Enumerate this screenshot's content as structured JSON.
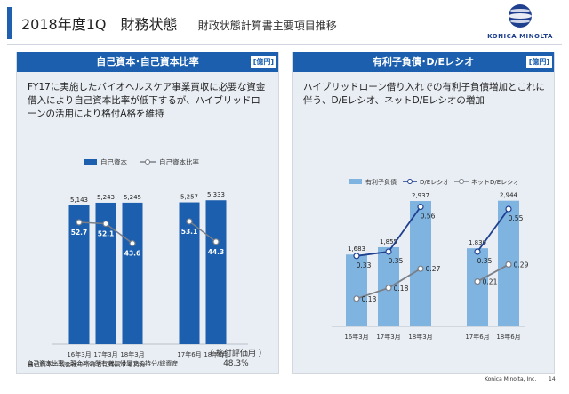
{
  "header": {
    "title": "2018年度1Q　財務状態",
    "subtitle": "財政状態計算書主要項目推移"
  },
  "logo": {
    "text": "KONICA MINOLTA"
  },
  "left_panel": {
    "title": "自己資本･自己資本比率",
    "unit": "[億円]",
    "description": "FY17に実施したバイオヘルスケア事業買収に必要な資金借入により自己資本比率が低下するが、ハイブリッドローンの活用により格付A格を維持",
    "legend_bar": "自己資本",
    "legend_line": "自己資本比率",
    "rating": "（ 格付評価用 ）",
    "rating_value": "48.3%",
    "note1": "自己資本＝親会社の所有者に帰属する持分",
    "note2": "自己資本比率＝親会社の所有者に帰属する持分/総資産"
  },
  "right_panel": {
    "title": "有利子負債･D/Eレシオ",
    "unit": "[億円]",
    "description": "ハイブリッドローン借り入れでの有利子負債増加とこれに伴う、D/Eレシオ、ネットD/Eレシオの増加",
    "legend_bar": "有利子負債",
    "legend_line1": "D/Eレシオ",
    "legend_line2": "ネットD/Eレシオ"
  },
  "footer": {
    "company": "Konica Minolta, Inc.",
    "page": "14"
  },
  "colors": {
    "accent": "#1b5fae",
    "bar_dark": "#1b5fae",
    "bar_light": "#7fb3e0",
    "line": "#7a7f88",
    "line_dark": "#1f3f8f"
  },
  "chart_data": [
    {
      "type": "bar",
      "categories": [
        "16年3月",
        "17年3月",
        "18年3月",
        "17年6月",
        "18年6月"
      ],
      "series": [
        {
          "name": "自己資本",
          "values": [
            5143,
            5243,
            5245,
            5257,
            5333
          ]
        },
        {
          "name": "自己資本比率",
          "values": [
            52.7,
            52.1,
            43.6,
            53.1,
            44.3
          ]
        }
      ],
      "value_labels": [
        "5,143",
        "5,243",
        "5,245",
        "5,257",
        "5,333"
      ],
      "ratio_labels": [
        "52.7",
        "52.1",
        "43.6",
        "53.1",
        "44.3"
      ],
      "line_segments": [
        [
          0,
          1,
          2
        ],
        [
          3,
          4
        ]
      ],
      "ylim": [
        0,
        6000
      ],
      "y2lim": [
        0,
        70
      ]
    },
    {
      "type": "bar",
      "categories": [
        "16年3月",
        "17年3月",
        "18年3月",
        "17年6月",
        "18年6月"
      ],
      "series": [
        {
          "name": "有利子負債",
          "values": [
            1683,
            1855,
            2937,
            1830,
            2944
          ]
        },
        {
          "name": "D/Eレシオ",
          "values": [
            0.33,
            0.35,
            0.56,
            0.35,
            0.55
          ]
        },
        {
          "name": "ネットD/Eレシオ",
          "values": [
            0.13,
            0.18,
            0.27,
            0.21,
            0.29
          ]
        }
      ],
      "value_labels": [
        "1,683",
        "1,855",
        "2,937",
        "1,830",
        "2,944"
      ],
      "de_labels": [
        "0.33",
        "0.35",
        "0.56",
        "0.35",
        "0.55"
      ],
      "net_labels": [
        "0.13",
        "0.18",
        "0.27",
        "0.21",
        "0.29"
      ],
      "line_segments": [
        [
          0,
          1,
          2
        ],
        [
          3,
          4
        ]
      ],
      "ylim": [
        0,
        3500
      ],
      "y2lim": [
        0,
        0.7
      ]
    }
  ]
}
